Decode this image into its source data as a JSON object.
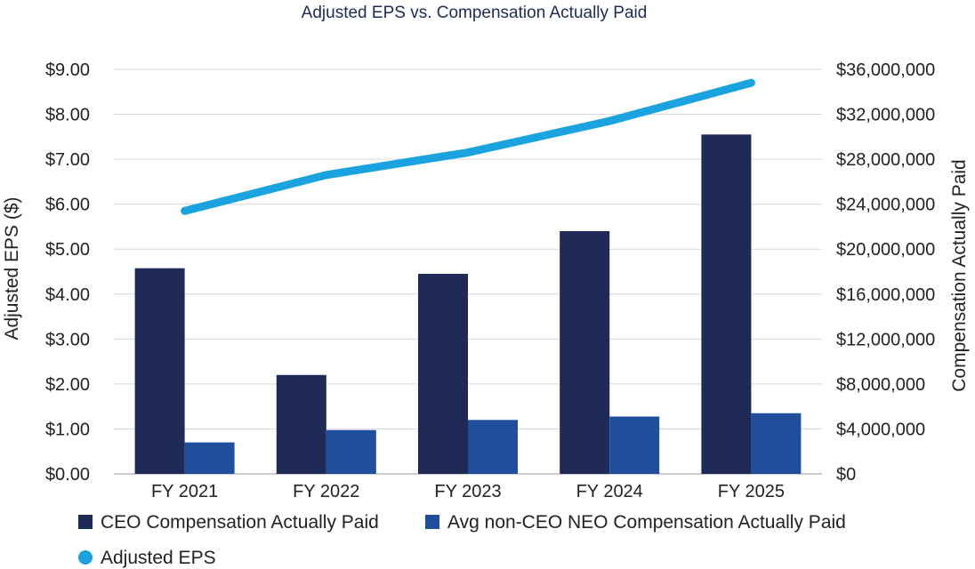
{
  "chart_data": {
    "type": "bar",
    "title": "Adjusted EPS vs. Compensation Actually Paid",
    "categories": [
      "FY 2021",
      "FY 2022",
      "FY 2023",
      "FY 2024",
      "FY 2025"
    ],
    "series": [
      {
        "name": "CEO Compensation Actually Paid",
        "type": "bar",
        "axis": "right",
        "color": "#1f2a56",
        "values": [
          18300000,
          8800000,
          17800000,
          21600000,
          30200000
        ]
      },
      {
        "name": "Avg non-CEO NEO Compensation Actually Paid",
        "type": "bar",
        "axis": "right",
        "color": "#1e4e9c",
        "values": [
          2800000,
          3900000,
          4800000,
          5100000,
          5400000
        ]
      },
      {
        "name": "Adjusted EPS",
        "type": "line",
        "axis": "left",
        "color": "#1aa3de",
        "values": [
          5.85,
          6.65,
          7.15,
          7.85,
          8.7
        ]
      }
    ],
    "ylabel": "Adjusted EPS ($)",
    "ylim": [
      0,
      9
    ],
    "yticks": [
      "$0.00",
      "$1.00",
      "$2.00",
      "$3.00",
      "$4.00",
      "$5.00",
      "$6.00",
      "$7.00",
      "$8.00",
      "$9.00"
    ],
    "y2label": "Compensation Actually Paid",
    "y2lim": [
      0,
      36000000
    ],
    "y2ticks": [
      "$0",
      "$4,000,000",
      "$8,000,000",
      "$12,000,000",
      "$16,000,000",
      "$20,000,000",
      "$24,000,000",
      "$28,000,000",
      "$32,000,000",
      "$36,000,000"
    ],
    "grid": true,
    "legend_position": "bottom"
  }
}
